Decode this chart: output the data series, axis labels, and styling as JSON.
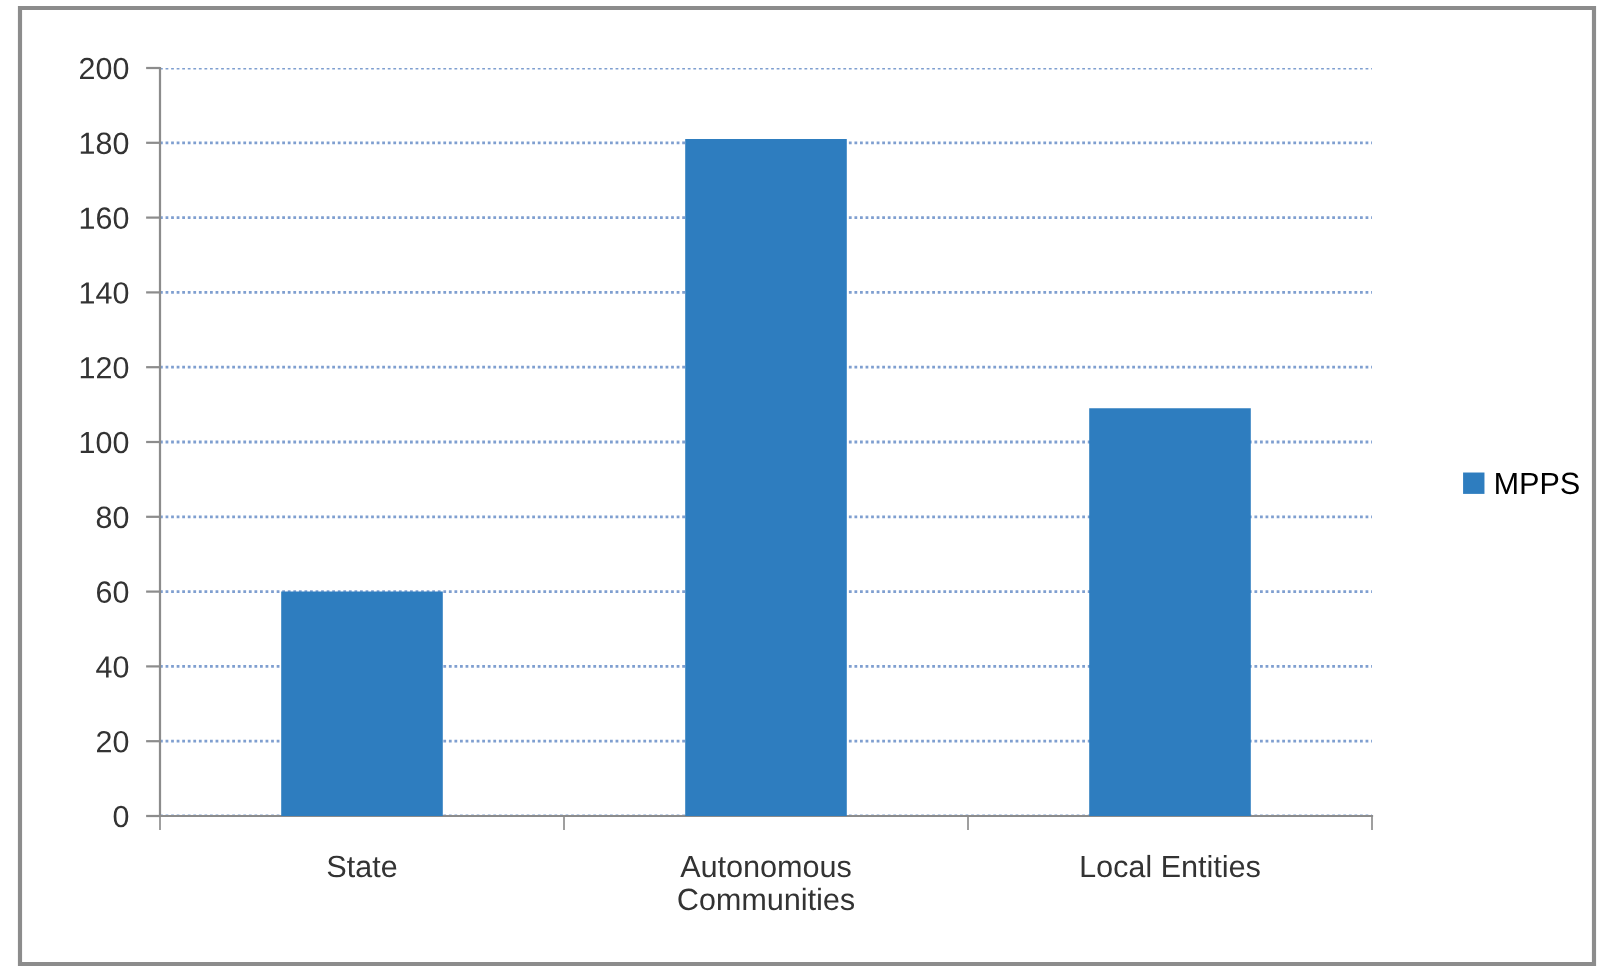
{
  "chart_data": {
    "type": "bar",
    "categories": [
      "State",
      "Autonomous\nCommunities",
      "Local Entities"
    ],
    "series": [
      {
        "name": "MPPS",
        "color": "#2e7dbf",
        "values": [
          60,
          181,
          109
        ]
      }
    ],
    "ylim": [
      0,
      200
    ],
    "yticks": [
      0,
      20,
      40,
      60,
      80,
      100,
      120,
      140,
      160,
      180,
      200
    ],
    "grid": "y",
    "legend": "right"
  }
}
